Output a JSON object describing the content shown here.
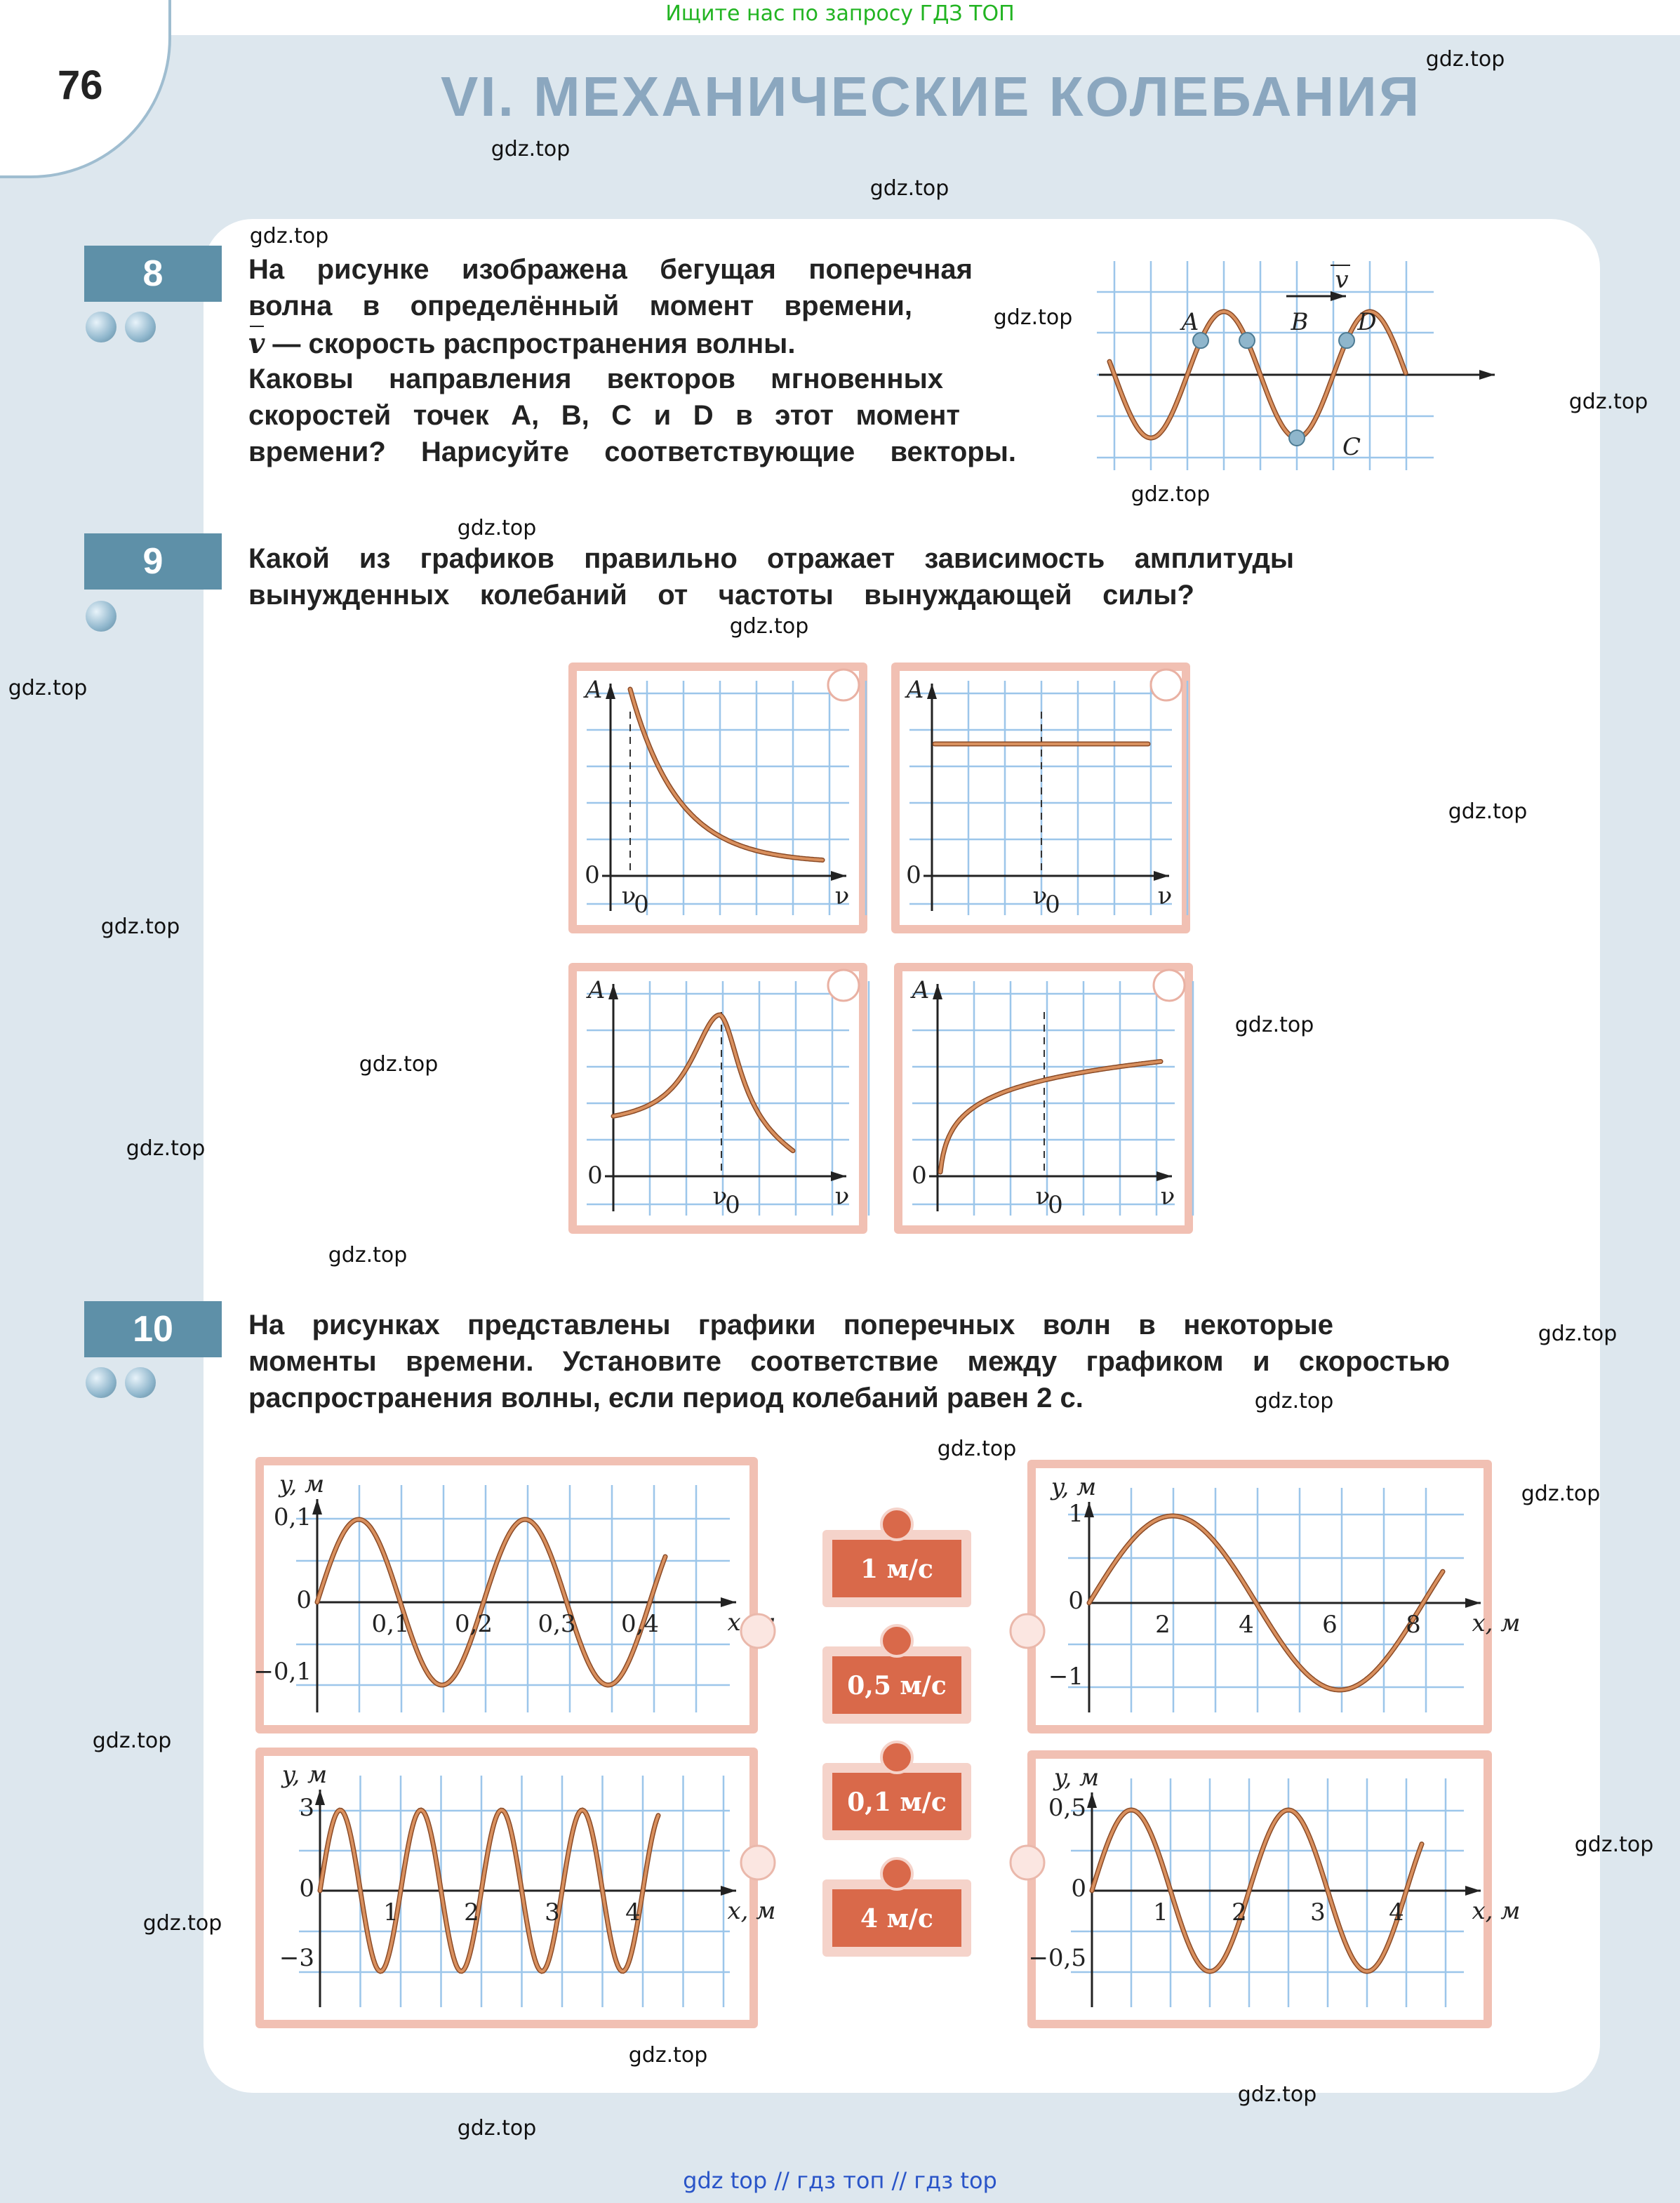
{
  "banner": {
    "top_text": "Ищите нас по запросу ГДЗ ТОП",
    "bottom_text": "gdz top  //  гдз топ  //  гдз top"
  },
  "header": {
    "page_number": "76",
    "title": "VI. МЕХАНИЧЕСКИЕ КОЛЕБАНИЯ"
  },
  "watermark": "gdz.top",
  "colors": {
    "badge": "#5e90a8",
    "curve": "#b8643a",
    "grid": "#9cc6ea",
    "frame": "#f1c0b3",
    "speed_box": "#d9694a",
    "title": "#8ba7bf"
  },
  "problems": [
    {
      "number": "8",
      "difficulty": 2,
      "lines": [
        "На рисунке изображена бегущая поперечная",
        "волна в определённый момент времени,",
        "— скорость распространения волны.",
        "Каковы направления векторов мгновенных",
        "скоростей точек A, B, C и D в этот момент",
        "времени? Нарисуйте соответствующие векторы."
      ],
      "vector_symbol": "v",
      "figure": {
        "points": [
          "A",
          "B",
          "C",
          "D"
        ],
        "velocity_label": "v"
      }
    },
    {
      "number": "9",
      "difficulty": 1,
      "lines": [
        "Какой из графиков правильно отражает зависимость амплитуды",
        "вынужденных колебаний от частоты вынуждающей силы?"
      ],
      "figure": {
        "y_label": "A",
        "origin": "0",
        "x_label": "ν",
        "marker_label": "ν",
        "marker_sub": "0"
      }
    },
    {
      "number": "10",
      "difficulty": 2,
      "lines": [
        "На рисунках представлены графики поперечных волн в некоторые",
        "моменты времени. Установите соответствие между графиком и скоростью",
        "распространения волны, если период колебаний равен 2 с."
      ],
      "speeds": [
        "1 м/с",
        "0,5 м/с",
        "0,1 м/с",
        "4 м/с"
      ],
      "graphs": [
        {
          "y_label": "y, м",
          "x_label": "x, м",
          "y_ticks": [
            "0,1",
            "0",
            "−0,1"
          ],
          "x_ticks": [
            "0,1",
            "0,2",
            "0,3",
            "0,4"
          ],
          "amplitude": 0.1,
          "wavelength": 0.2
        },
        {
          "y_label": "y, м",
          "x_label": "x, м",
          "y_ticks": [
            "1",
            "0",
            "−1"
          ],
          "x_ticks": [
            "2",
            "4",
            "6",
            "8"
          ],
          "amplitude": 1,
          "wavelength": 8
        },
        {
          "y_label": "y, м",
          "x_label": "x, м",
          "y_ticks": [
            "3",
            "0",
            "−3"
          ],
          "x_ticks": [
            "1",
            "2",
            "3",
            "4"
          ],
          "amplitude": 3,
          "wavelength": 1
        },
        {
          "y_label": "y, м",
          "x_label": "x, м",
          "y_ticks": [
            "0,5",
            "0",
            "−0,5"
          ],
          "x_ticks": [
            "1",
            "2",
            "3",
            "4"
          ],
          "amplitude": 0.5,
          "wavelength": 2
        }
      ]
    }
  ]
}
